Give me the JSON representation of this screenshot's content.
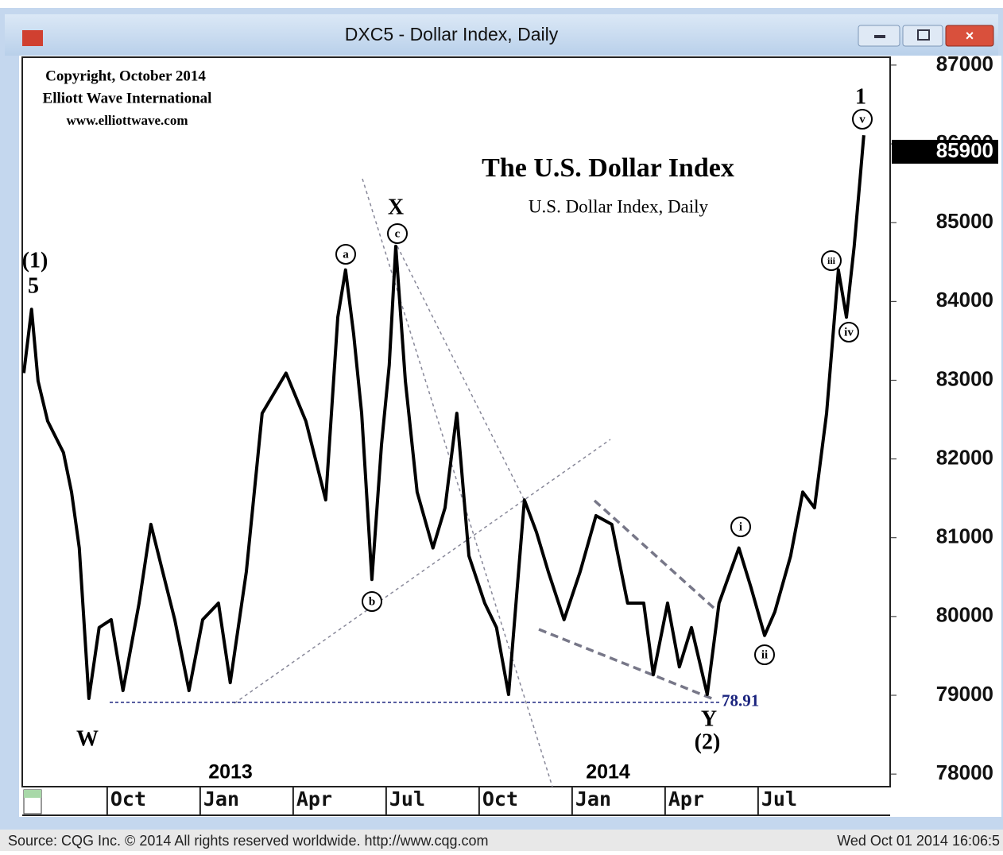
{
  "window_title": "DXC5 - Dollar Index, Daily",
  "copyright": [
    "Copyright, October 2014",
    "Elliott Wave International",
    "www.elliottwave.com"
  ],
  "footer": {
    "source": "Source: CQG Inc. © 2014 All rights reserved worldwide. http://www.cqg.com",
    "timestamp": "Wed Oct 01 2014 16:06:5"
  },
  "chart_data": {
    "type": "line",
    "title": "The U.S. Dollar Index",
    "subtitle": "U.S. Dollar Index, Daily",
    "ylim": [
      77840,
      87100
    ],
    "yticks": [
      78000,
      79000,
      80000,
      81000,
      82000,
      83000,
      84000,
      85000,
      86000,
      87000
    ],
    "xlim": [
      -2.74,
      25.26
    ],
    "xticks": [
      {
        "value": 0,
        "label": "Oct"
      },
      {
        "value": 3,
        "label": "Jan"
      },
      {
        "value": 6,
        "label": "Apr"
      },
      {
        "value": 9,
        "label": "Jul"
      },
      {
        "value": 12,
        "label": "Oct"
      },
      {
        "value": 15,
        "label": "Jan"
      },
      {
        "value": 18,
        "label": "Apr"
      },
      {
        "value": 21,
        "label": "Jul"
      }
    ],
    "years": [
      "2013",
      "2014"
    ],
    "last_price": 85900,
    "level": {
      "value": 78910,
      "label": "78.91"
    },
    "series": [
      {
        "name": "DXC5",
        "color": "#000000",
        "x": [
          -2.69,
          -2.44,
          -2.23,
          -1.92,
          -1.41,
          -1.15,
          -0.9,
          -0.59,
          -0.26,
          0.13,
          0.51,
          1.03,
          1.41,
          1.79,
          2.18,
          2.64,
          3.08,
          3.59,
          3.97,
          4.49,
          5.0,
          5.77,
          6.41,
          7.05,
          7.44,
          7.69,
          7.95,
          8.21,
          8.54,
          8.85,
          9.1,
          9.31,
          9.62,
          10.0,
          10.51,
          10.9,
          11.28,
          11.67,
          12.18,
          12.56,
          12.95,
          13.21,
          13.46,
          13.85,
          14.23,
          14.74,
          15.26,
          15.77,
          16.28,
          16.79,
          17.31,
          17.62,
          18.08,
          18.46,
          18.85,
          19.36,
          19.74,
          20.38,
          20.77,
          21.21,
          21.54,
          22.05,
          22.44,
          22.82,
          23.21,
          23.59,
          23.85,
          24.1,
          24.28,
          24.41
        ],
        "values": [
          83090,
          83900,
          82990,
          82480,
          82080,
          81580,
          80870,
          78960,
          79860,
          79960,
          79060,
          80170,
          81170,
          80570,
          79960,
          79060,
          79960,
          80170,
          79160,
          80570,
          82580,
          83090,
          82480,
          81480,
          83800,
          84400,
          83590,
          82580,
          80470,
          82180,
          83190,
          84700,
          82990,
          81580,
          80870,
          81380,
          82580,
          80770,
          80170,
          79860,
          79010,
          80270,
          81480,
          81070,
          80570,
          79960,
          80570,
          81280,
          81170,
          80170,
          80170,
          79260,
          80170,
          79360,
          79860,
          79010,
          80170,
          80870,
          80370,
          79760,
          80060,
          80770,
          81580,
          81380,
          82580,
          84400,
          83800,
          84700,
          85510,
          86110
        ]
      }
    ],
    "annotations": [
      {
        "text": "(1)"
      },
      {
        "text": "5"
      },
      {
        "text": "W"
      },
      {
        "text": "a",
        "circled": true
      },
      {
        "text": "b",
        "circled": true
      },
      {
        "text": "X"
      },
      {
        "text": "c",
        "circled": true
      },
      {
        "text": "Y"
      },
      {
        "text": "(2)"
      },
      {
        "text": "i",
        "circled": true
      },
      {
        "text": "ii",
        "circled": true
      },
      {
        "text": "iii",
        "circled": true
      },
      {
        "text": "iv",
        "circled": true
      },
      {
        "text": "v",
        "circled": true
      },
      {
        "text": "1"
      }
    ]
  }
}
